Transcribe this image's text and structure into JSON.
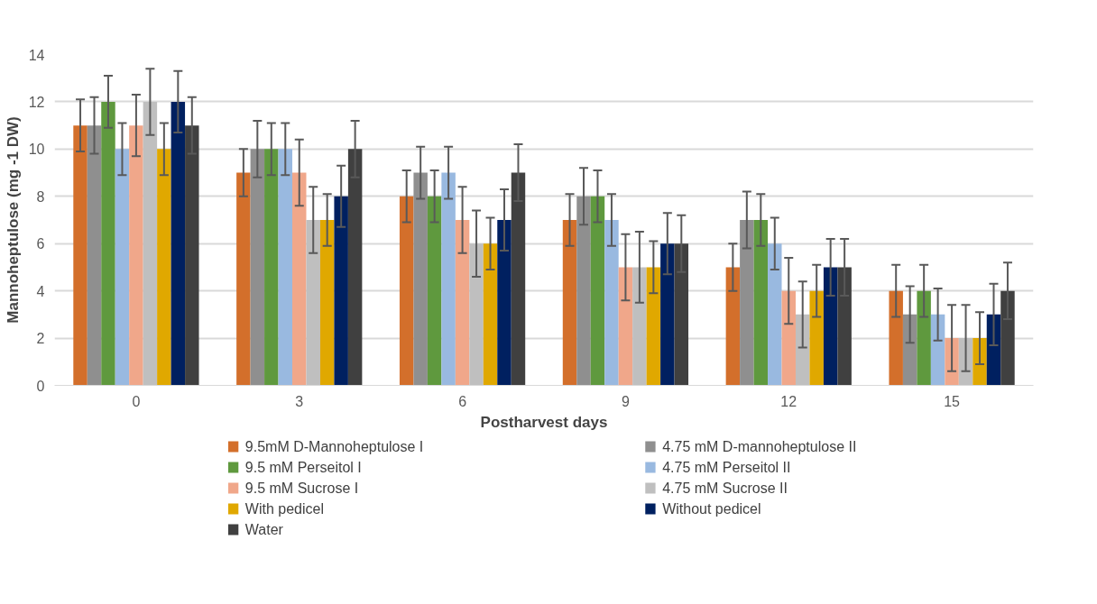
{
  "chart_data": {
    "type": "bar",
    "xlabel": "Postharvest days",
    "ylabel": "Mannoheptulose (mg -1 DW)",
    "categories": [
      "0",
      "3",
      "6",
      "9",
      "12",
      "15"
    ],
    "ylim": [
      0,
      14
    ],
    "yticks": [
      0,
      2,
      4,
      6,
      8,
      10,
      12,
      14
    ],
    "grid": "y",
    "legend": "bottom",
    "series": [
      {
        "name": "9.5mM D-Mannoheptulose I",
        "color": "#d36f2b",
        "values": [
          11,
          9,
          8,
          7,
          5,
          4
        ],
        "errors": [
          1.1,
          1.0,
          1.1,
          1.1,
          1.0,
          1.1
        ]
      },
      {
        "name": "4.75 mM D-mannoheptulose II",
        "color": "#8f8f8f",
        "values": [
          11,
          10,
          9,
          8,
          7,
          3
        ],
        "errors": [
          1.2,
          1.2,
          1.1,
          1.2,
          1.2,
          1.2
        ]
      },
      {
        "name": "9.5 mM Perseitol I",
        "color": "#5f993e",
        "values": [
          12,
          10,
          8,
          8,
          7,
          4
        ],
        "errors": [
          1.1,
          1.1,
          1.1,
          1.1,
          1.1,
          1.1
        ]
      },
      {
        "name": "4.75 mM Perseitol II",
        "color": "#99b9e0",
        "values": [
          10,
          10,
          9,
          7,
          6,
          3
        ],
        "errors": [
          1.1,
          1.1,
          1.1,
          1.1,
          1.1,
          1.1
        ]
      },
      {
        "name": "9.5 mM Sucrose I",
        "color": "#f0a78a",
        "values": [
          11,
          9,
          7,
          5,
          4,
          2
        ],
        "errors": [
          1.3,
          1.4,
          1.4,
          1.4,
          1.4,
          1.4
        ]
      },
      {
        "name": "4.75 mM Sucrose II",
        "color": "#bfbfbf",
        "values": [
          12,
          7,
          6,
          5,
          3,
          2
        ],
        "errors": [
          1.4,
          1.4,
          1.4,
          1.5,
          1.4,
          1.4
        ]
      },
      {
        "name": "With pedicel",
        "color": "#e0a800",
        "values": [
          10,
          7,
          6,
          5,
          4,
          2
        ],
        "errors": [
          1.1,
          1.1,
          1.1,
          1.1,
          1.1,
          1.1
        ]
      },
      {
        "name": "Without pedicel",
        "color": "#002060",
        "values": [
          12,
          8,
          7,
          6,
          5,
          3
        ],
        "errors": [
          1.3,
          1.3,
          1.3,
          1.3,
          1.2,
          1.3
        ]
      },
      {
        "name": "Water",
        "color": "#404040",
        "values": [
          11,
          10,
          9,
          6,
          5,
          4
        ],
        "errors": [
          1.2,
          1.2,
          1.2,
          1.2,
          1.2,
          1.2
        ]
      }
    ]
  }
}
